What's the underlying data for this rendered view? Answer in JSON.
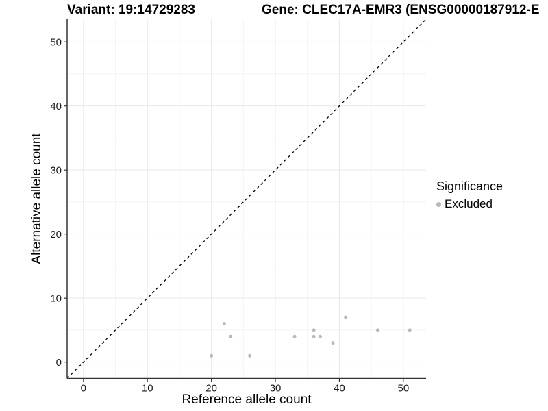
{
  "titles": {
    "variant": "Variant: 19:14729283",
    "gene": "Gene: CLEC17A-EMR3 (ENSG00000187912-E"
  },
  "legend": {
    "title": "Significance",
    "items": [
      {
        "label": "Excluded",
        "color": "#b9b9b9"
      }
    ]
  },
  "chart_data": {
    "type": "scatter",
    "title_left": "Variant: 19:14729283",
    "title_right": "Gene: CLEC17A-EMR3 (ENSG00000187912-E",
    "xlabel": "Reference allele count",
    "ylabel": "Alternative allele count",
    "xlim": [
      -2.55,
      53.55
    ],
    "ylim": [
      -2.55,
      53.55
    ],
    "x_ticks": [
      0,
      10,
      20,
      30,
      40,
      50
    ],
    "y_ticks": [
      0,
      10,
      20,
      30,
      40,
      50
    ],
    "x_minor_gridlines": [
      5,
      15,
      25,
      35,
      45
    ],
    "y_minor_gridlines": [
      5,
      15,
      25,
      35,
      45
    ],
    "grid": "major+minor",
    "legend_position": "right",
    "identity_line": {
      "style": "dashed",
      "color": "#000000",
      "from": [
        -2.55,
        -2.55
      ],
      "to": [
        53.55,
        53.55
      ]
    },
    "series": [
      {
        "name": "Excluded",
        "color": "#b9b9b9",
        "marker": "circle",
        "points": [
          [
            20,
            1
          ],
          [
            22,
            6
          ],
          [
            23,
            4
          ],
          [
            26,
            1
          ],
          [
            33,
            4
          ],
          [
            36,
            4
          ],
          [
            36,
            5
          ],
          [
            37,
            4
          ],
          [
            39,
            3
          ],
          [
            41,
            7
          ],
          [
            46,
            5
          ],
          [
            51,
            5
          ]
        ]
      }
    ]
  },
  "colors": {
    "background": "#ffffff",
    "grid_major": "#e9e9e9",
    "grid_minor": "#f4f4f4",
    "axis_line": "#333333",
    "tick_mark": "#333333",
    "tick_label": "#1a1a1a",
    "point": "#b9b9b9"
  }
}
